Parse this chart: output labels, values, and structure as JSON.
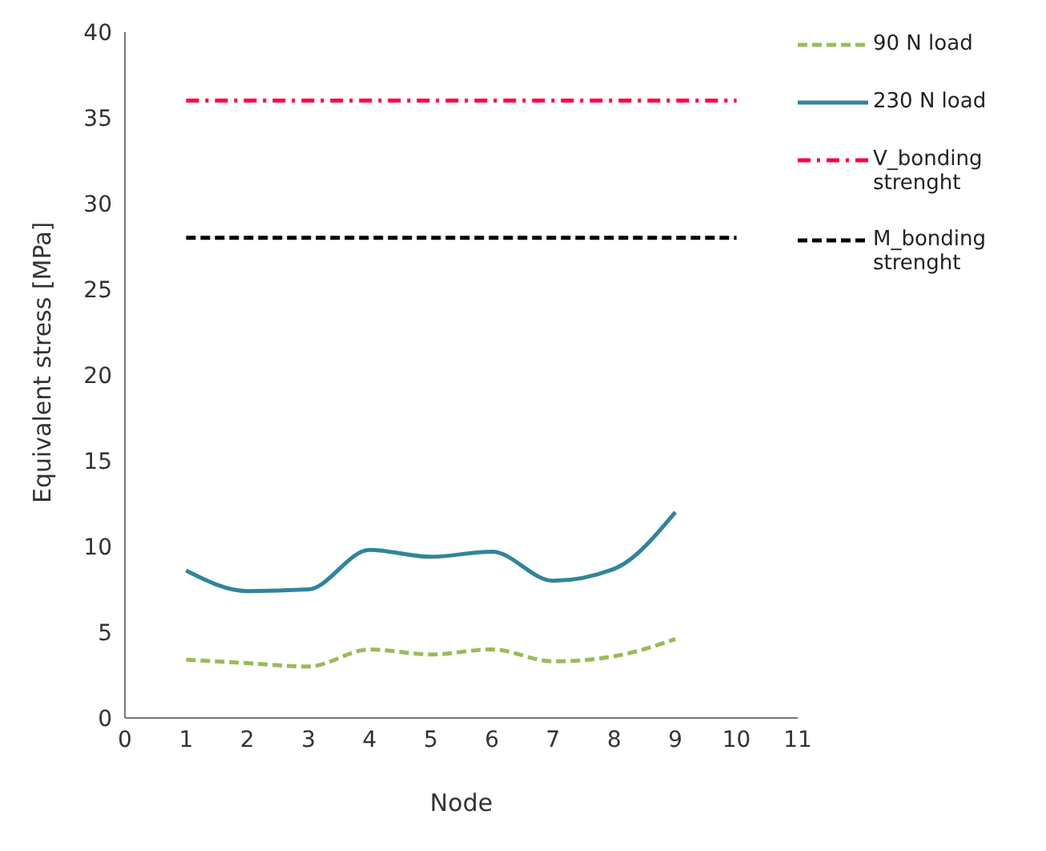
{
  "chart_data": {
    "type": "line",
    "xlabel": "Node",
    "ylabel": "Equivalent stress [MPa]",
    "xlim": [
      0,
      11
    ],
    "xticks": [
      0,
      1,
      2,
      3,
      4,
      5,
      6,
      7,
      8,
      9,
      10,
      11
    ],
    "ylim": [
      0,
      40
    ],
    "yticks": [
      0,
      5,
      10,
      15,
      20,
      25,
      30,
      35,
      40
    ],
    "grid": false,
    "legend": "right",
    "marker": "none",
    "series": [
      {
        "name": "90 N load",
        "color": "#9bbb59",
        "line_style": "dashed",
        "x": [
          1,
          2,
          3,
          4,
          5,
          6,
          7,
          8,
          9
        ],
        "values": [
          3.4,
          3.2,
          3.0,
          4.0,
          3.7,
          4.0,
          3.3,
          3.6,
          4.6
        ]
      },
      {
        "name": "230 N load",
        "color": "#31849b",
        "line_style": "solid",
        "x": [
          1,
          2,
          3,
          4,
          5,
          6,
          7,
          8,
          9
        ],
        "values": [
          8.6,
          7.4,
          7.5,
          9.8,
          9.4,
          9.7,
          8.0,
          8.7,
          12.0
        ]
      },
      {
        "name": "V_bonding strenght",
        "color": "#ff0040",
        "line_style": "dashdot",
        "x": [
          1,
          10
        ],
        "values": [
          36,
          36
        ]
      },
      {
        "name": "M_bonding strenght",
        "color": "#000000",
        "line_style": "dashed",
        "x": [
          1,
          10
        ],
        "values": [
          28,
          28
        ]
      }
    ]
  }
}
